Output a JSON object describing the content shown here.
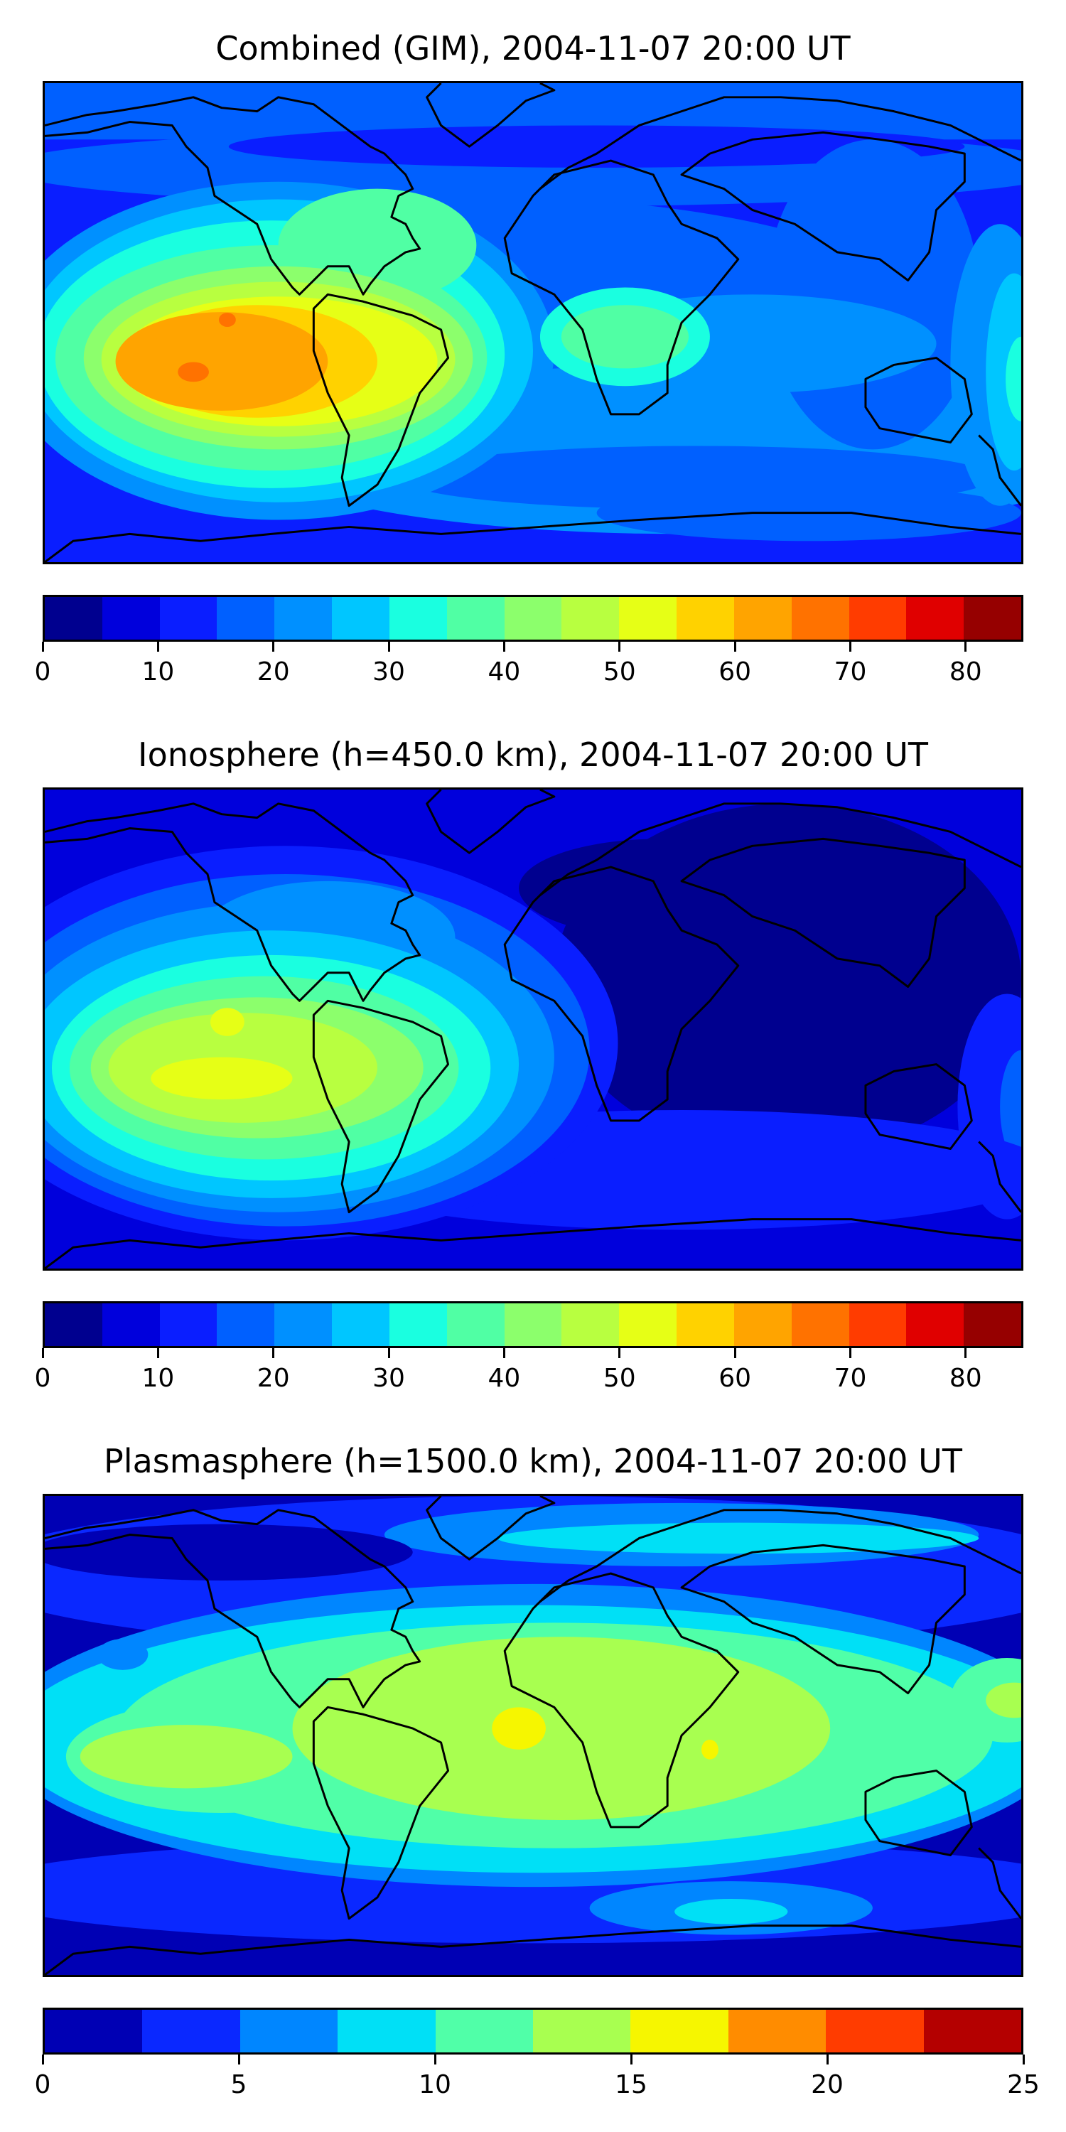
{
  "figure": {
    "panels": [
      {
        "id": "combined",
        "title": "Combined (GIM), 2004-11-07 20:00 UT",
        "colorbar": {
          "vmin": 0,
          "vmax": 85,
          "step": 5,
          "ticks": [
            "0",
            "10",
            "20",
            "30",
            "40",
            "50",
            "60",
            "70",
            "80"
          ],
          "colors": [
            "#00008f",
            "#0000dc",
            "#0a1eff",
            "#0060ff",
            "#0090ff",
            "#00c6ff",
            "#1affe0",
            "#50ffa4",
            "#8cff6c",
            "#b8ff40",
            "#e6ff16",
            "#ffd200",
            "#ffa400",
            "#ff7200",
            "#ff3c00",
            "#e00000",
            "#960000"
          ]
        }
      },
      {
        "id": "ionosphere",
        "title": "Ionosphere  (h=450.0 km), 2004-11-07 20:00 UT",
        "colorbar": {
          "vmin": 0,
          "vmax": 85,
          "step": 5,
          "ticks": [
            "0",
            "10",
            "20",
            "30",
            "40",
            "50",
            "60",
            "70",
            "80"
          ],
          "colors": [
            "#00008f",
            "#0000dc",
            "#0a1eff",
            "#0060ff",
            "#0090ff",
            "#00c6ff",
            "#1affe0",
            "#50ffa4",
            "#8cff6c",
            "#b8ff40",
            "#e6ff16",
            "#ffd200",
            "#ffa400",
            "#ff7200",
            "#ff3c00",
            "#e00000",
            "#960000"
          ]
        }
      },
      {
        "id": "plasmasphere",
        "title": "Plasmasphere (h=1500.0 km), 2004-11-07 20:00 UT",
        "colorbar": {
          "vmin": 0,
          "vmax": 25,
          "step": 2.5,
          "ticks": [
            "0",
            "5",
            "10",
            "15",
            "20",
            "25"
          ],
          "colors": [
            "#0000b4",
            "#0a28ff",
            "#0086ff",
            "#00e0f6",
            "#50ffa8",
            "#a8ff50",
            "#f6f600",
            "#ff8c00",
            "#ff3c00",
            "#b40000"
          ]
        }
      }
    ]
  }
}
